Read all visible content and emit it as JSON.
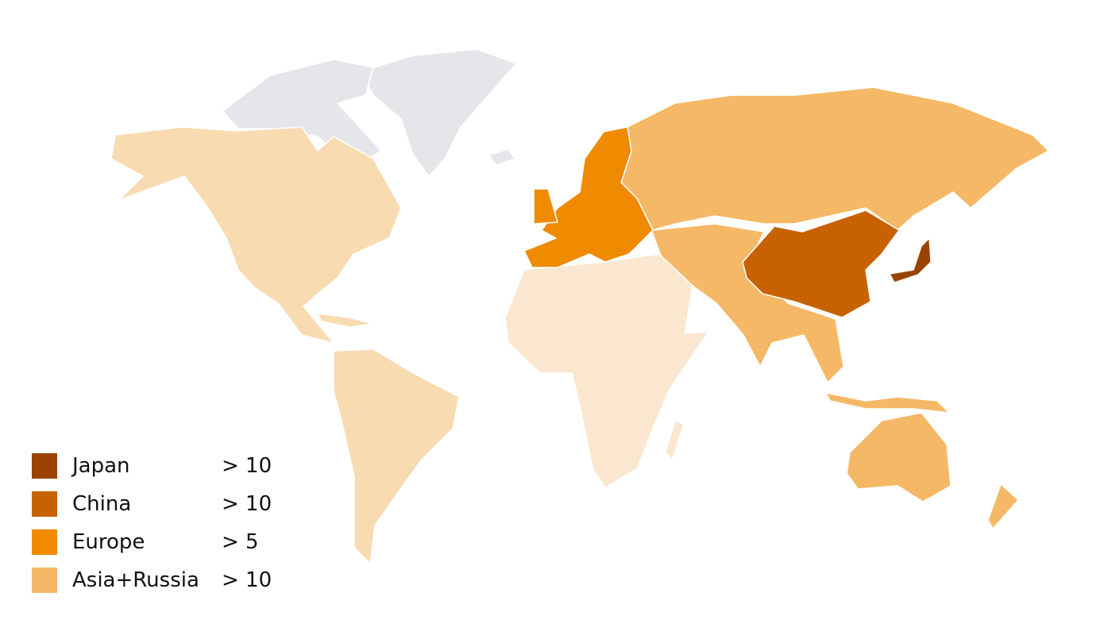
{
  "legend": [
    {
      "label": "Japan",
      "value": "> 10",
      "color": "#9a4300"
    },
    {
      "label": "China",
      "value": "> 10",
      "color": "#c86200"
    },
    {
      "label": "Europe",
      "value": "> 5",
      "color": "#f08a00"
    },
    {
      "label": "Asia+Russia",
      "value": "> 10",
      "color": "#f5b866"
    }
  ],
  "map_colors": {
    "americas": "#f9dbb2",
    "africa": "#fbe7cf",
    "no_data": "#e4e6ea"
  }
}
